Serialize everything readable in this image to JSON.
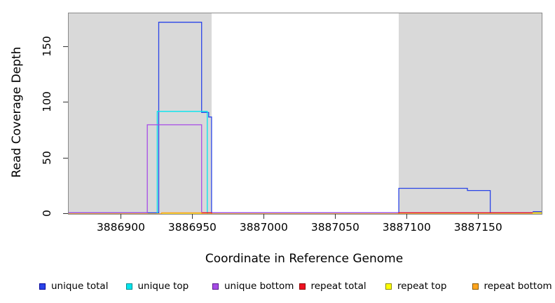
{
  "chart_data": {
    "type": "line",
    "subtype": "step-coverage",
    "title": "",
    "xlabel": "Coordinate in Reference Genome",
    "ylabel": "Read Coverage Depth",
    "xlim": [
      3886863,
      3887194
    ],
    "ylim": [
      0,
      180
    ],
    "x_ticks": [
      3886900,
      3886950,
      3887000,
      3887050,
      3887100,
      3887150
    ],
    "y_ticks": [
      0,
      50,
      100,
      150
    ],
    "grid": false,
    "legend_position": "bottom",
    "plot_background": "#ffffff",
    "shaded_regions": [
      {
        "x0": 3886863,
        "x1": 3886963,
        "color": "#d9d9d9"
      },
      {
        "x0": 3887094,
        "x1": 3887194,
        "color": "#d9d9d9"
      }
    ],
    "series": [
      {
        "name": "unique total",
        "color": "#2a44e8",
        "swatch_border": "#000099",
        "step_points": [
          [
            3886863,
            1
          ],
          [
            3886926,
            172
          ],
          [
            3886956,
            91
          ],
          [
            3886961,
            87
          ],
          [
            3886963,
            1
          ],
          [
            3887094,
            23
          ],
          [
            3887142,
            21
          ],
          [
            3887158,
            1
          ],
          [
            3887188,
            2
          ],
          [
            3887194,
            2
          ]
        ]
      },
      {
        "name": "unique top",
        "color": "#00e5ee",
        "swatch_border": "#008b8b",
        "step_points": [
          [
            3886863,
            0
          ],
          [
            3886925,
            92
          ],
          [
            3886960,
            0
          ],
          [
            3887194,
            0
          ]
        ]
      },
      {
        "name": "unique bottom",
        "color": "#a64ce6",
        "swatch_border": "#551a8b",
        "step_points": [
          [
            3886863,
            1
          ],
          [
            3886918,
            80
          ],
          [
            3886956,
            1
          ],
          [
            3887194,
            1
          ]
        ]
      },
      {
        "name": "repeat total",
        "color": "#ee1122",
        "swatch_border": "#8b0000",
        "step_points": [
          [
            3886863,
            0
          ],
          [
            3886956,
            1
          ],
          [
            3886963,
            0
          ],
          [
            3887094,
            1
          ],
          [
            3887194,
            1
          ]
        ]
      },
      {
        "name": "repeat top",
        "color": "#ffff00",
        "swatch_border": "#8b8b00",
        "step_points": [
          [
            3886863,
            0
          ],
          [
            3887188,
            1
          ],
          [
            3887194,
            1
          ]
        ]
      },
      {
        "name": "repeat bottom",
        "color": "#ffa51e",
        "swatch_border": "#8b5a00",
        "step_points": [
          [
            3886863,
            0
          ],
          [
            3886928,
            1
          ],
          [
            3886956,
            0
          ],
          [
            3887194,
            0
          ]
        ]
      }
    ]
  }
}
